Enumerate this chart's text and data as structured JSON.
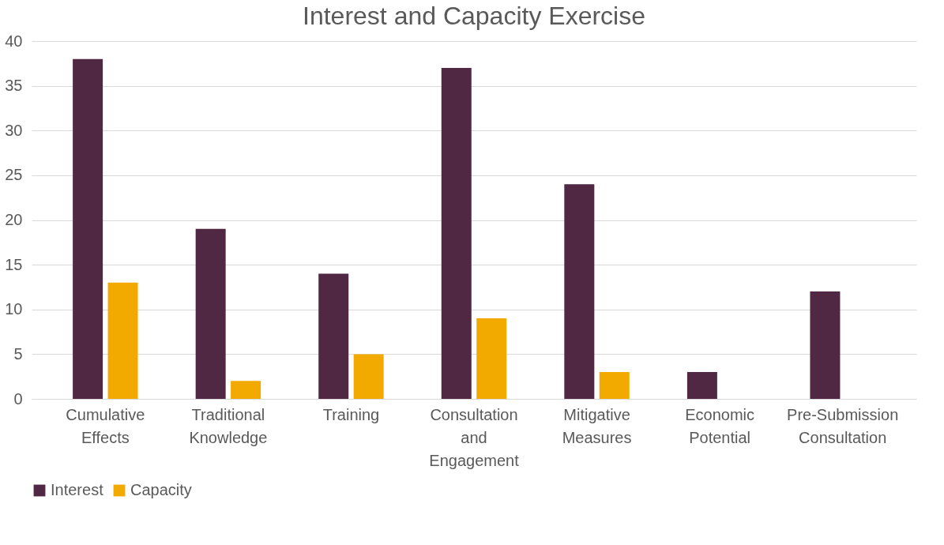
{
  "chart_data": {
    "type": "bar",
    "title": "Interest and Capacity Exercise",
    "categories": [
      "Cumulative Effects",
      "Traditional Knowledge",
      "Training",
      "Consultation and Engagement",
      "Mitigative Measures",
      "Economic Potential",
      "Pre-Submission Consultation"
    ],
    "series": [
      {
        "name": "Interest",
        "color": "#512843",
        "values": [
          38,
          19,
          14,
          37,
          24,
          3,
          12
        ]
      },
      {
        "name": "Capacity",
        "color": "#f2a900",
        "values": [
          13,
          2,
          5,
          9,
          3,
          0,
          0
        ]
      }
    ],
    "ylim": [
      0,
      40
    ],
    "yticks": [
      0,
      5,
      10,
      15,
      20,
      25,
      30,
      35,
      40
    ],
    "grid": "y",
    "legend": "bottom"
  }
}
